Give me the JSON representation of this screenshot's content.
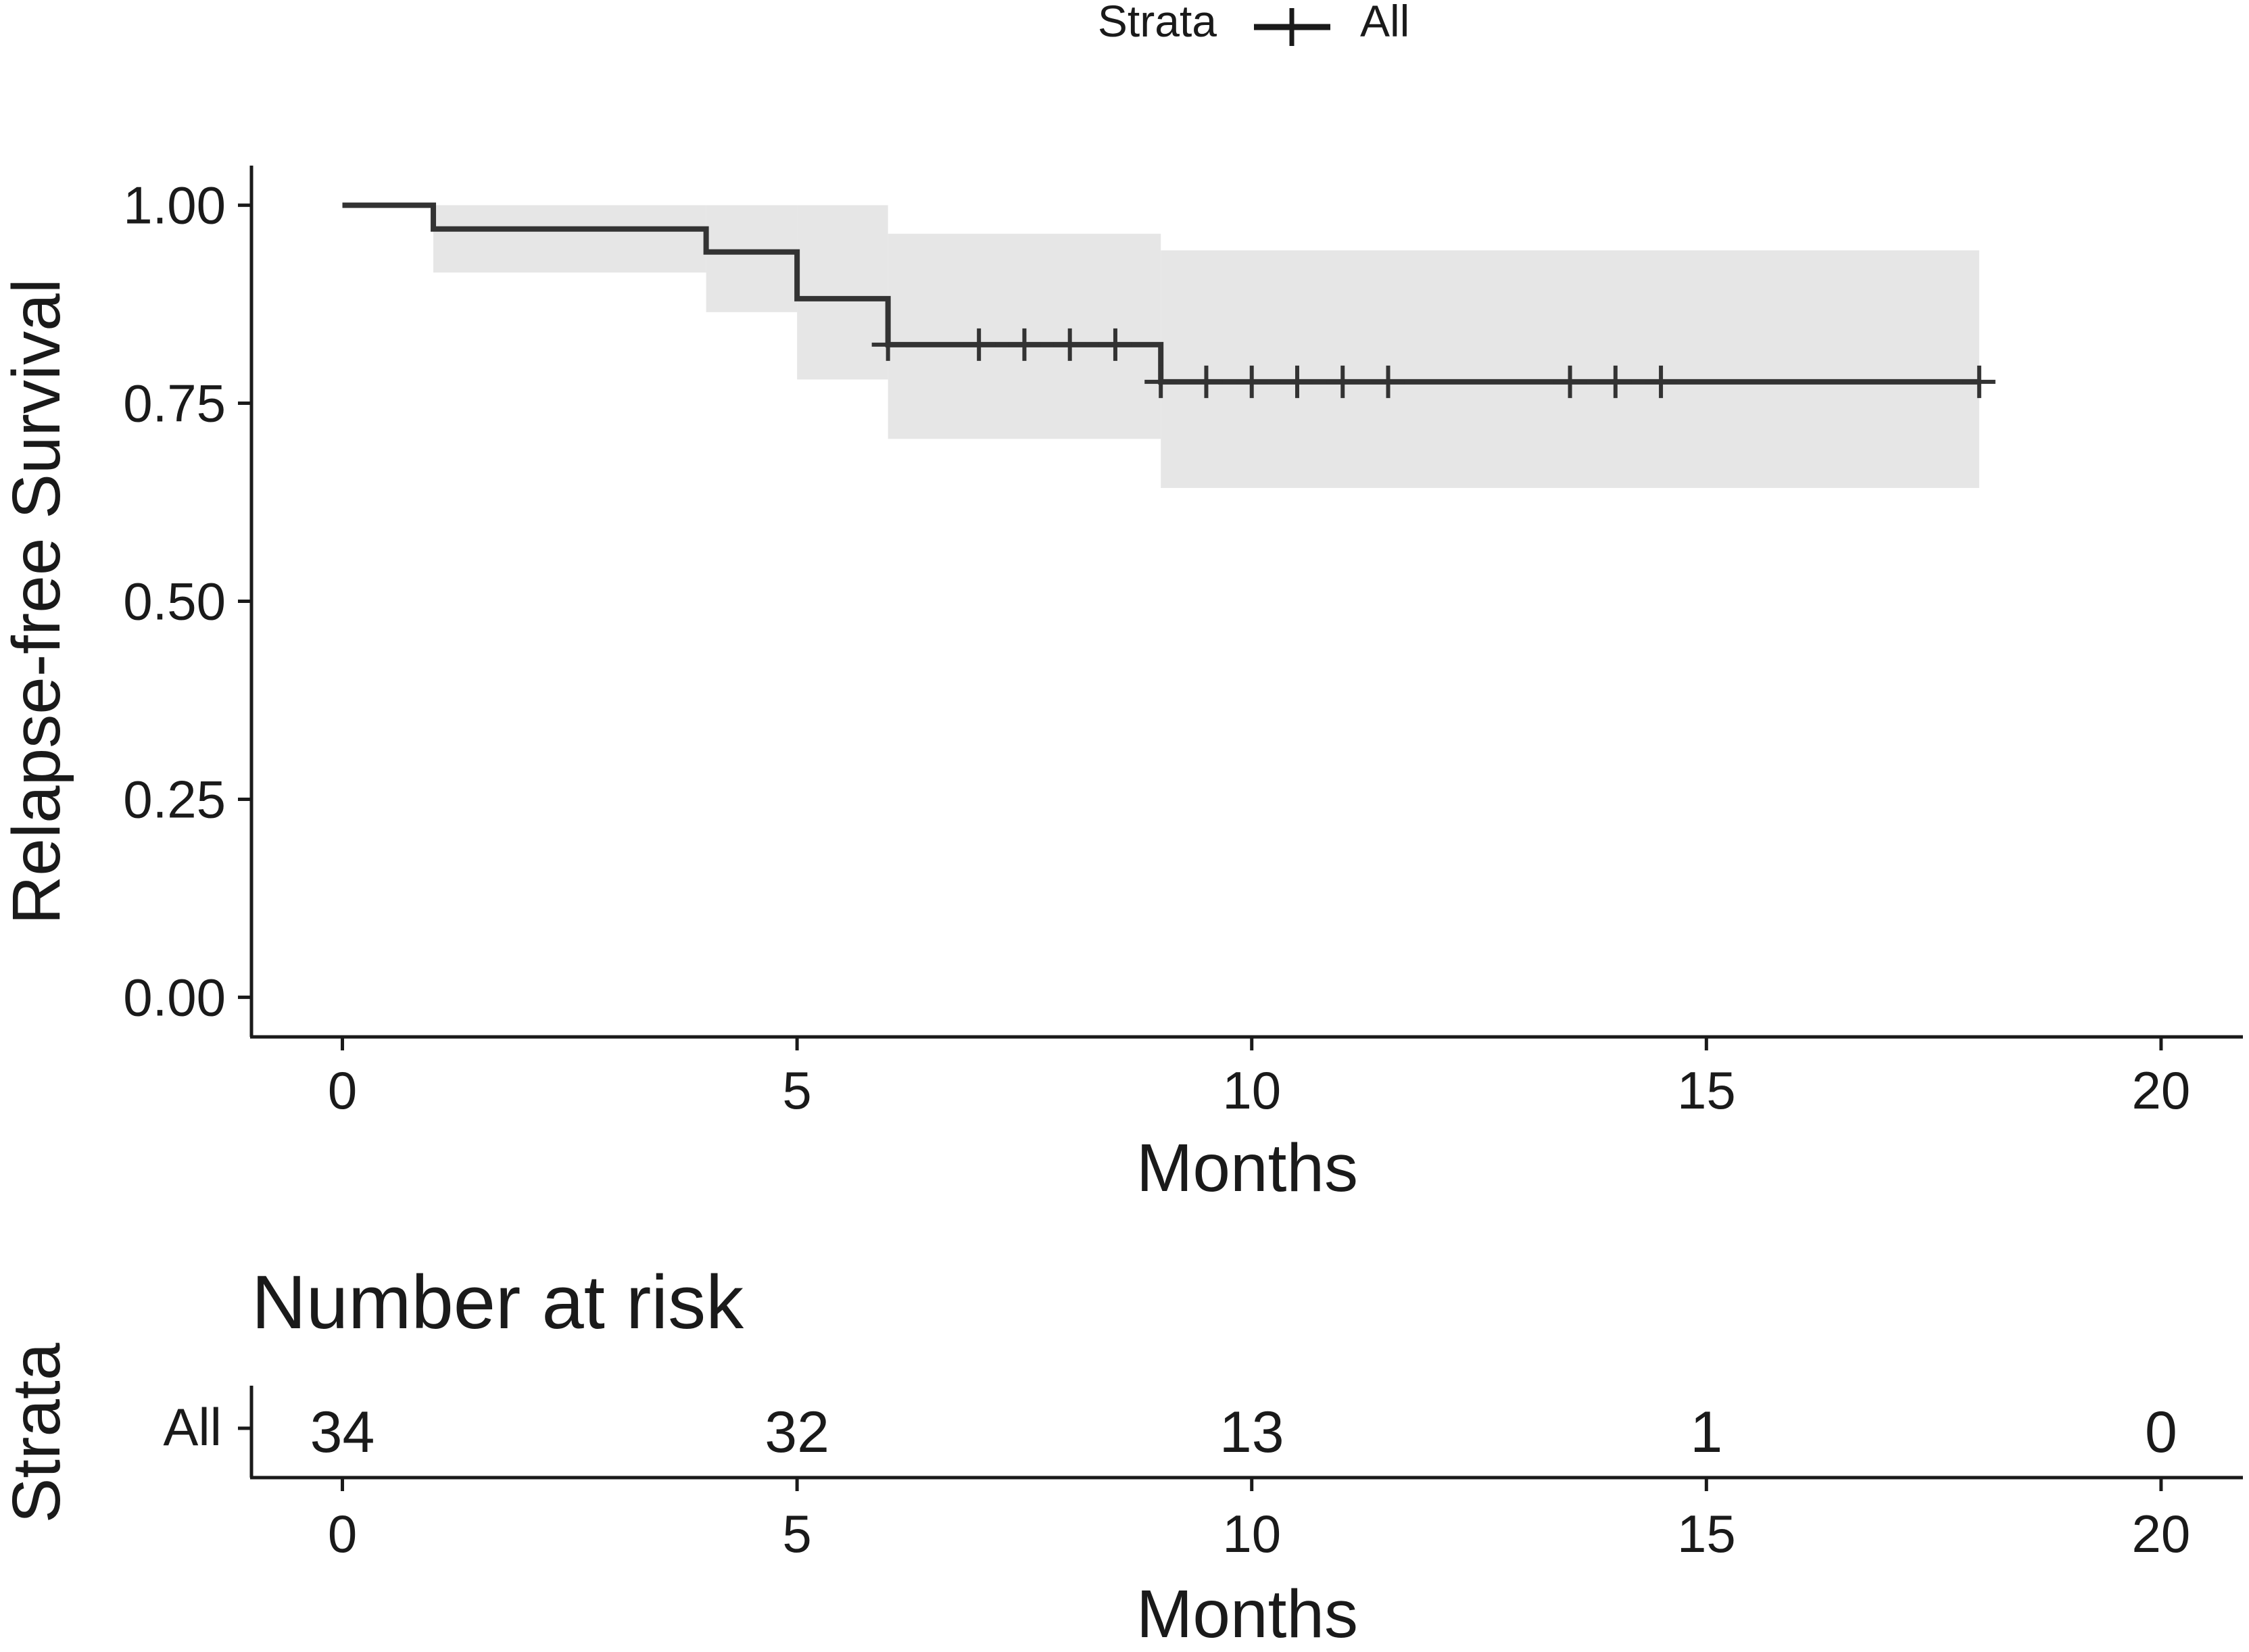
{
  "legend": {
    "title": "Strata",
    "label": "All"
  },
  "chart_data": {
    "type": "line",
    "subtype": "kaplan-meier",
    "title": "",
    "xlabel": "Months",
    "ylabel": "Relapse-free Survival",
    "xlim": [
      -1,
      20.9
    ],
    "ylim": [
      -0.05,
      1.05
    ],
    "xticks": [
      0,
      5,
      10,
      15,
      20
    ],
    "yticks": [
      0.0,
      0.25,
      0.5,
      0.75,
      1.0
    ],
    "xtick_labels": [
      "0",
      "5",
      "10",
      "15",
      "20"
    ],
    "ytick_labels": [
      "0.00",
      "0.25",
      "0.50",
      "0.75",
      "1.00"
    ],
    "grid": false,
    "legend_position": "top",
    "series": [
      {
        "name": "All",
        "color": "#333333",
        "steps": [
          {
            "x": 0,
            "y": 1.0
          },
          {
            "x": 1,
            "y": 0.97
          },
          {
            "x": 4,
            "y": 0.941
          },
          {
            "x": 5,
            "y": 0.882
          },
          {
            "x": 6,
            "y": 0.824
          },
          {
            "x": 9,
            "y": 0.777
          },
          {
            "x": 18,
            "y": 0.777
          }
        ],
        "ci": [
          {
            "x": 0,
            "lower": 1.0,
            "upper": 1.0
          },
          {
            "x": 1,
            "lower": 0.915,
            "upper": 1.0
          },
          {
            "x": 4,
            "lower": 0.865,
            "upper": 1.0
          },
          {
            "x": 5,
            "lower": 0.78,
            "upper": 1.0
          },
          {
            "x": 6,
            "lower": 0.705,
            "upper": 0.964
          },
          {
            "x": 9,
            "lower": 0.643,
            "upper": 0.943
          },
          {
            "x": 18,
            "lower": 0.643,
            "upper": 0.943
          }
        ],
        "censor_x": [
          6,
          7,
          7.5,
          8,
          8.5,
          9,
          9.5,
          10,
          10.5,
          11,
          11.5,
          13.5,
          14,
          14.5,
          18
        ]
      }
    ],
    "risk_table": {
      "title": "Number at risk",
      "ylabel": "Strata",
      "xlabel": "Months",
      "row_label": "All",
      "times": [
        0,
        5,
        10,
        15,
        20
      ],
      "counts": [
        "34",
        "32",
        "13",
        "1",
        "0"
      ]
    }
  }
}
